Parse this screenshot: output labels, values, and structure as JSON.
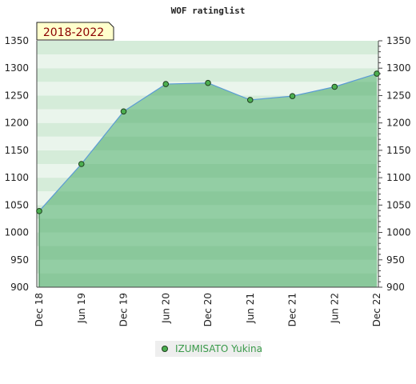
{
  "chart_data": {
    "type": "area",
    "title": "WOF ratinglist",
    "period_label": "2018-2022",
    "x": [
      "Dec 18",
      "Jun 19",
      "Dec 19",
      "Jun 20",
      "Dec 20",
      "Jun 21",
      "Dec 21",
      "Jun 22",
      "Dec 22"
    ],
    "series": [
      {
        "name": "IZUMISATO Yukina",
        "values": [
          1039,
          1125,
          1221,
          1271,
          1273,
          1242,
          1249,
          1266,
          1290
        ]
      }
    ],
    "ylim": [
      900,
      1350
    ],
    "y_ticks": [
      900,
      950,
      1000,
      1050,
      1100,
      1150,
      1200,
      1250,
      1300,
      1350
    ],
    "y_axis_sides": [
      "left",
      "right"
    ],
    "legend_position": "bottom-center",
    "colors": {
      "line": "#5b9bd5",
      "area": "#7cc492",
      "marker_fill": "#4caf50",
      "marker_stroke": "#1f3f1f",
      "badge_fill": "#ffffcc",
      "badge_text": "#8b0000"
    }
  }
}
